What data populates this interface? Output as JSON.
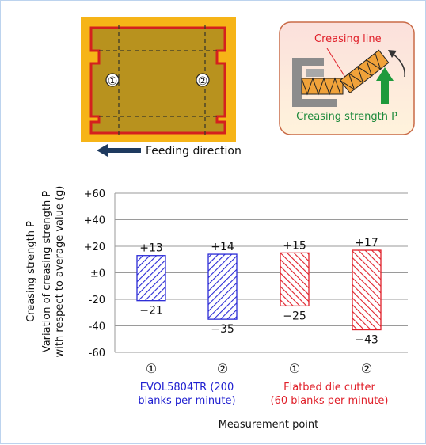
{
  "figure": {
    "blank_diagram": {
      "point_1": "①",
      "point_2": "②",
      "feeding_direction": "Feeding direction"
    },
    "inset_diagram": {
      "creasing_line": "Creasing line",
      "creasing_strength": "Creasing strength P"
    }
  },
  "chart_data": {
    "type": "bar",
    "ylabel_line1": "Creasing strength P",
    "ylabel_line2": "Variation of creasing strength P",
    "ylabel_line3": "with respect to average value (g)",
    "xlabel": "Measurement point",
    "ylim": [
      -60,
      60
    ],
    "yticks": [
      {
        "value": 60,
        "label": "+60"
      },
      {
        "value": 40,
        "label": "+40"
      },
      {
        "value": 20,
        "label": "+20"
      },
      {
        "value": 0,
        "label": "±0"
      },
      {
        "value": -20,
        "label": "-20"
      },
      {
        "value": -40,
        "label": "-40"
      },
      {
        "value": -60,
        "label": "-60"
      }
    ],
    "grid": true,
    "bars": [
      {
        "category": "①",
        "group": "EVOL5804TR",
        "max": 13,
        "min": -21,
        "max_label": "+13",
        "min_label": "−21",
        "color": "#2b2bd6"
      },
      {
        "category": "②",
        "group": "EVOL5804TR",
        "max": 14,
        "min": -35,
        "max_label": "+14",
        "min_label": "−35",
        "color": "#2b2bd6"
      },
      {
        "category": "①",
        "group": "Flatbed",
        "max": 15,
        "min": -25,
        "max_label": "+15",
        "min_label": "−25",
        "color": "#e0202a"
      },
      {
        "category": "②",
        "group": "Flatbed",
        "max": 17,
        "min": -43,
        "max_label": "+17",
        "min_label": "−43",
        "color": "#e0202a"
      }
    ],
    "groups": [
      {
        "id": "EVOL5804TR",
        "line1": "EVOL5804TR (200",
        "line2": "blanks per minute)",
        "color": "#1f1fd0"
      },
      {
        "id": "Flatbed",
        "line1": "Flatbed die cutter",
        "line2": "(60 blanks per minute)",
        "color": "#e0202a"
      }
    ]
  }
}
